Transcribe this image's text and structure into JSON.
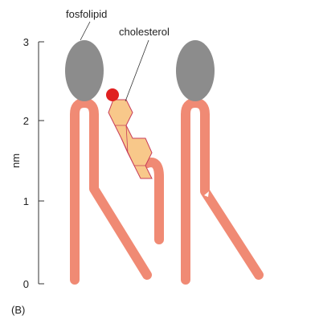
{
  "labels": {
    "phospholipid": "fosfolipid",
    "cholesterol": "cholesterol"
  },
  "axis": {
    "label": "nm",
    "ticks": [
      "0",
      "1",
      "2",
      "3"
    ]
  },
  "panel_label": "(B)"
}
